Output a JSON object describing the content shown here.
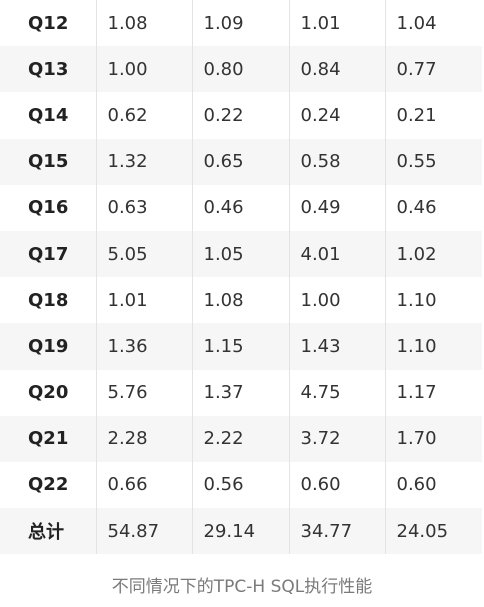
{
  "table": {
    "rows": [
      {
        "label": "Q12",
        "values": [
          "1.08",
          "1.09",
          "1.01",
          "1.04"
        ]
      },
      {
        "label": "Q13",
        "values": [
          "1.00",
          "0.80",
          "0.84",
          "0.77"
        ]
      },
      {
        "label": "Q14",
        "values": [
          "0.62",
          "0.22",
          "0.24",
          "0.21"
        ]
      },
      {
        "label": "Q15",
        "values": [
          "1.32",
          "0.65",
          "0.58",
          "0.55"
        ]
      },
      {
        "label": "Q16",
        "values": [
          "0.63",
          "0.46",
          "0.49",
          "0.46"
        ]
      },
      {
        "label": "Q17",
        "values": [
          "5.05",
          "1.05",
          "4.01",
          "1.02"
        ]
      },
      {
        "label": "Q18",
        "values": [
          "1.01",
          "1.08",
          "1.00",
          "1.10"
        ]
      },
      {
        "label": "Q19",
        "values": [
          "1.36",
          "1.15",
          "1.43",
          "1.10"
        ]
      },
      {
        "label": "Q20",
        "values": [
          "5.76",
          "1.37",
          "4.75",
          "1.17"
        ]
      },
      {
        "label": "Q21",
        "values": [
          "2.28",
          "2.22",
          "3.72",
          "1.70"
        ]
      },
      {
        "label": "Q22",
        "values": [
          "0.66",
          "0.56",
          "0.60",
          "0.60"
        ]
      },
      {
        "label": "总计",
        "values": [
          "54.87",
          "29.14",
          "34.77",
          "24.05"
        ]
      }
    ]
  },
  "caption": "不同情况下的TPC-H SQL执行性能"
}
